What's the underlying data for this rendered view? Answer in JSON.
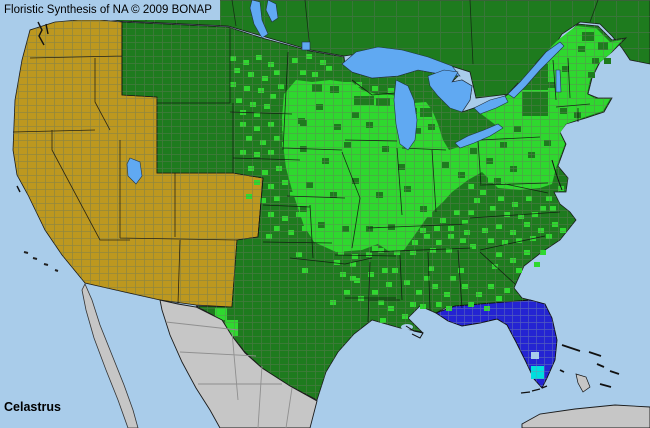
{
  "header": {
    "title": "Floristic Synthesis of NA © 2009 BONAP"
  },
  "footer": {
    "taxon": "Celastrus"
  },
  "map": {
    "colors": {
      "ocean": "#A9CCEA",
      "lake": "#60A9F2",
      "darkGreen": "#1E7B1E",
      "brightGreen": "#2FD82F",
      "gold": "#BD981F",
      "grayLand": "#C6C6C6",
      "blueState": "#2424D2",
      "cyanCounty": "#00DEDE",
      "border": "#111111",
      "countyLine": "#66755C",
      "mexicoLine": "#8F8F8F",
      "text": "#000000"
    },
    "county_markers": [
      [
        230,
        56
      ],
      [
        243,
        60
      ],
      [
        256,
        55
      ],
      [
        268,
        62
      ],
      [
        234,
        68
      ],
      [
        248,
        72
      ],
      [
        262,
        76
      ],
      [
        274,
        70
      ],
      [
        230,
        82
      ],
      [
        244,
        86
      ],
      [
        258,
        88
      ],
      [
        270,
        94
      ],
      [
        236,
        98
      ],
      [
        250,
        102
      ],
      [
        264,
        104
      ],
      [
        278,
        84
      ],
      [
        240,
        110
      ],
      [
        254,
        112
      ],
      [
        292,
        58
      ],
      [
        306,
        54
      ],
      [
        320,
        60
      ],
      [
        300,
        70
      ],
      [
        312,
        72
      ],
      [
        326,
        66
      ],
      [
        240,
        122
      ],
      [
        254,
        126
      ],
      [
        268,
        122
      ],
      [
        282,
        126
      ],
      [
        246,
        136
      ],
      [
        260,
        140
      ],
      [
        274,
        136
      ],
      [
        240,
        150
      ],
      [
        254,
        152
      ],
      [
        268,
        150
      ],
      [
        282,
        142
      ],
      [
        288,
        130
      ],
      [
        248,
        166
      ],
      [
        262,
        170
      ],
      [
        276,
        166
      ],
      [
        290,
        172
      ],
      [
        254,
        180
      ],
      [
        268,
        184
      ],
      [
        282,
        180
      ],
      [
        296,
        178
      ],
      [
        246,
        194
      ],
      [
        260,
        198
      ],
      [
        274,
        196
      ],
      [
        290,
        192
      ],
      [
        300,
        186
      ],
      [
        304,
        172
      ],
      [
        268,
        212
      ],
      [
        282,
        216
      ],
      [
        296,
        212
      ],
      [
        310,
        218
      ],
      [
        274,
        226
      ],
      [
        288,
        230
      ],
      [
        302,
        226
      ],
      [
        316,
        222
      ],
      [
        266,
        234
      ],
      [
        320,
        212
      ],
      [
        332,
        240
      ],
      [
        346,
        236
      ],
      [
        360,
        240
      ],
      [
        372,
        246
      ],
      [
        338,
        250
      ],
      [
        352,
        254
      ],
      [
        366,
        252
      ],
      [
        334,
        260
      ],
      [
        350,
        262
      ],
      [
        302,
        268
      ],
      [
        330,
        300
      ],
      [
        350,
        276
      ],
      [
        296,
        252
      ],
      [
        215,
        308,
        12,
        12
      ],
      [
        225,
        320,
        13,
        16
      ],
      [
        212,
        335,
        11,
        14
      ],
      [
        340,
        272
      ],
      [
        354,
        278
      ],
      [
        368,
        272
      ],
      [
        382,
        268
      ],
      [
        344,
        290
      ],
      [
        358,
        296
      ],
      [
        372,
        290
      ],
      [
        386,
        282
      ],
      [
        392,
        268
      ],
      [
        378,
        300
      ],
      [
        388,
        306
      ],
      [
        402,
        314
      ],
      [
        380,
        318
      ],
      [
        404,
        280
      ],
      [
        416,
        290
      ],
      [
        410,
        302
      ],
      [
        424,
        276
      ],
      [
        420,
        304
      ],
      [
        432,
        284
      ],
      [
        444,
        292
      ],
      [
        436,
        302
      ],
      [
        450,
        276
      ],
      [
        428,
        266
      ],
      [
        446,
        306
      ],
      [
        462,
        284
      ],
      [
        476,
        292
      ],
      [
        488,
        284
      ],
      [
        468,
        302
      ],
      [
        496,
        296
      ],
      [
        458,
        268
      ],
      [
        484,
        306
      ],
      [
        504,
        288
      ],
      [
        372,
        238
      ],
      [
        386,
        242
      ],
      [
        398,
        236
      ],
      [
        412,
        240
      ],
      [
        424,
        234
      ],
      [
        436,
        240
      ],
      [
        448,
        234
      ],
      [
        460,
        238
      ],
      [
        378,
        248
      ],
      [
        394,
        250
      ],
      [
        410,
        250
      ],
      [
        430,
        248
      ],
      [
        446,
        248
      ],
      [
        464,
        230
      ],
      [
        470,
        244
      ],
      [
        398,
        214
      ],
      [
        412,
        220
      ],
      [
        426,
        212
      ],
      [
        440,
        218
      ],
      [
        454,
        210
      ],
      [
        404,
        226
      ],
      [
        420,
        228
      ],
      [
        434,
        226
      ],
      [
        448,
        226
      ],
      [
        462,
        220
      ],
      [
        468,
        210
      ],
      [
        468,
        184
      ],
      [
        480,
        190
      ],
      [
        474,
        198
      ],
      [
        488,
        178
      ],
      [
        498,
        196
      ],
      [
        512,
        202
      ],
      [
        526,
        196
      ],
      [
        540,
        206
      ],
      [
        504,
        212
      ],
      [
        518,
        214
      ],
      [
        532,
        212
      ],
      [
        546,
        196
      ],
      [
        550,
        206
      ],
      [
        490,
        206
      ],
      [
        482,
        228
      ],
      [
        496,
        224
      ],
      [
        510,
        230
      ],
      [
        524,
        222
      ],
      [
        538,
        228
      ],
      [
        552,
        222
      ],
      [
        488,
        238
      ],
      [
        502,
        240
      ],
      [
        516,
        238
      ],
      [
        530,
        236
      ],
      [
        546,
        234
      ],
      [
        560,
        228
      ],
      [
        496,
        252
      ],
      [
        510,
        258
      ],
      [
        524,
        250
      ],
      [
        492,
        264
      ],
      [
        516,
        268
      ],
      [
        534,
        262
      ],
      [
        540,
        250
      ],
      [
        558,
        186
      ],
      [
        356,
        82
      ],
      [
        372,
        86
      ],
      [
        388,
        88
      ],
      [
        298,
        118,
        7,
        6,
        "a"
      ],
      [
        316,
        104,
        7,
        6,
        "a"
      ],
      [
        334,
        124,
        7,
        6,
        "a"
      ],
      [
        352,
        112,
        7,
        6,
        "a"
      ],
      [
        300,
        146,
        7,
        6,
        "a"
      ],
      [
        322,
        158,
        7,
        6,
        "a"
      ],
      [
        344,
        142,
        7,
        6,
        "a"
      ],
      [
        366,
        122,
        7,
        6,
        "a"
      ],
      [
        382,
        146,
        7,
        6,
        "a"
      ],
      [
        306,
        182,
        7,
        6,
        "a"
      ],
      [
        330,
        192,
        7,
        6,
        "a"
      ],
      [
        352,
        178,
        7,
        6,
        "a"
      ],
      [
        376,
        192,
        7,
        6,
        "a"
      ],
      [
        398,
        164,
        7,
        6,
        "a"
      ],
      [
        404,
        186,
        7,
        6,
        "a"
      ],
      [
        420,
        206,
        7,
        6,
        "a"
      ],
      [
        442,
        162,
        7,
        6,
        "a"
      ],
      [
        458,
        172,
        7,
        6,
        "a"
      ],
      [
        470,
        148,
        7,
        6,
        "a"
      ],
      [
        486,
        158,
        7,
        6,
        "a"
      ],
      [
        500,
        142,
        7,
        6,
        "a"
      ],
      [
        514,
        126,
        7,
        6,
        "a"
      ],
      [
        532,
        104,
        7,
        6,
        "a"
      ],
      [
        548,
        82,
        7,
        6,
        "a"
      ],
      [
        562,
        66,
        7,
        6,
        "a"
      ],
      [
        578,
        46,
        7,
        6,
        "a"
      ],
      [
        592,
        58,
        7,
        6,
        "a"
      ],
      [
        588,
        72,
        7,
        6,
        "a"
      ],
      [
        604,
        58,
        7,
        6,
        "a"
      ],
      [
        560,
        108,
        7,
        6,
        "a"
      ],
      [
        574,
        112,
        7,
        6,
        "a"
      ],
      [
        544,
        140,
        7,
        6,
        "a"
      ],
      [
        528,
        152,
        7,
        6,
        "a"
      ],
      [
        510,
        166,
        7,
        6,
        "a"
      ],
      [
        494,
        178,
        7,
        6,
        "a"
      ],
      [
        410,
        108,
        7,
        6,
        "a"
      ],
      [
        428,
        124,
        7,
        6,
        "a"
      ],
      [
        300,
        206,
        7,
        6,
        "a"
      ],
      [
        318,
        222,
        7,
        6,
        "a"
      ],
      [
        342,
        226,
        7,
        6,
        "a"
      ],
      [
        366,
        226,
        7,
        6,
        "a"
      ],
      [
        388,
        224,
        7,
        6,
        "a"
      ],
      [
        312,
        84,
        10,
        8,
        "a"
      ],
      [
        330,
        86,
        9,
        7,
        "a"
      ],
      [
        420,
        108,
        12,
        9,
        "a"
      ],
      [
        518,
        64,
        30,
        26,
        "a"
      ],
      [
        522,
        92,
        26,
        24,
        "a"
      ],
      [
        582,
        32,
        12,
        9,
        "a"
      ],
      [
        598,
        42,
        10,
        8,
        "a"
      ],
      [
        354,
        96,
        20,
        9,
        "a"
      ],
      [
        376,
        98,
        14,
        8,
        "a"
      ],
      [
        414,
        128,
        7,
        6,
        "a"
      ],
      [
        300,
        120,
        7,
        6,
        "a"
      ],
      [
        531,
        366,
        13,
        13,
        "e"
      ]
    ]
  }
}
